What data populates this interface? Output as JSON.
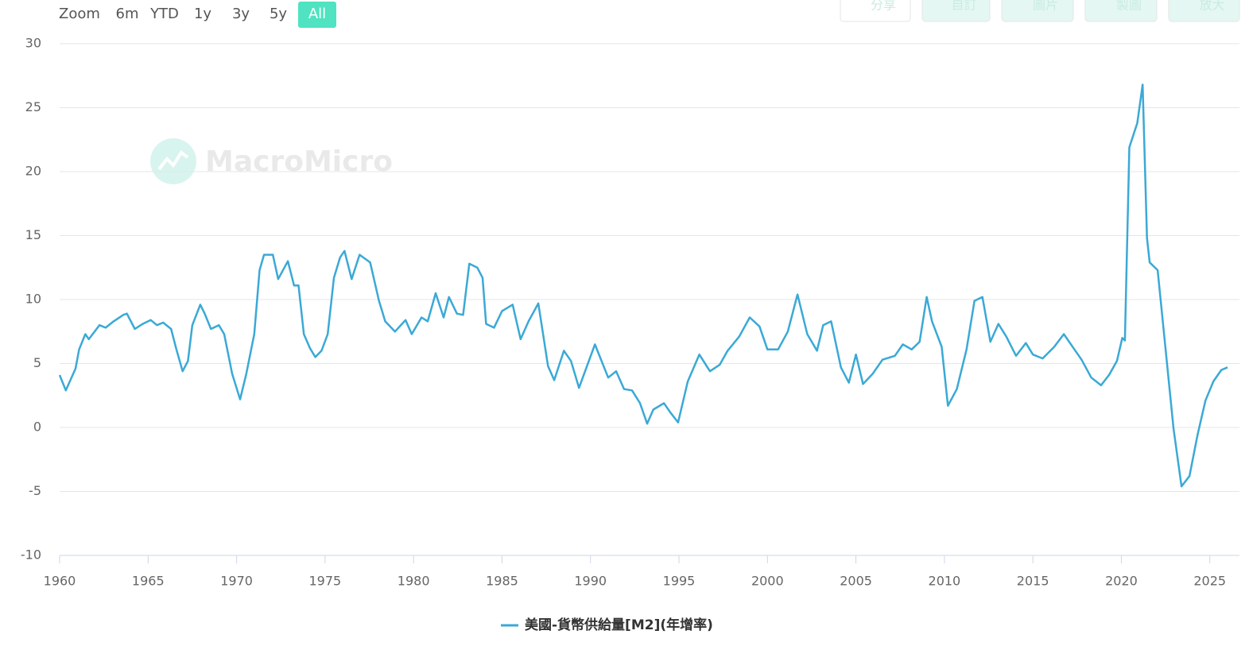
{
  "ui": {
    "zoom_label": "Zoom",
    "zoom_buttons": [
      "6m",
      "YTD",
      "1y",
      "3y",
      "5y",
      "All"
    ],
    "active_zoom": "All",
    "toolbar": [
      "分享",
      "自訂",
      "圖片",
      "製圖",
      "放大"
    ],
    "watermark": "MacroMicro"
  },
  "chart_data": {
    "type": "line",
    "x": [
      1960.0,
      1960.35,
      1960.9,
      1961.1,
      1961.45,
      1961.65,
      1962.25,
      1962.6,
      1963.05,
      1963.6,
      1963.8,
      1964.25,
      1964.7,
      1965.15,
      1965.5,
      1965.85,
      1966.3,
      1966.6,
      1966.95,
      1967.25,
      1967.5,
      1967.95,
      1968.2,
      1968.55,
      1969.0,
      1969.3,
      1969.75,
      1970.2,
      1970.55,
      1971.0,
      1971.3,
      1971.55,
      1972.05,
      1972.35,
      1972.9,
      1973.25,
      1973.5,
      1973.8,
      1974.15,
      1974.45,
      1974.8,
      1975.15,
      1975.5,
      1975.85,
      1976.1,
      1976.5,
      1976.95,
      1977.55,
      1978.05,
      1978.4,
      1978.95,
      1979.55,
      1979.9,
      1980.45,
      1980.8,
      1981.25,
      1981.7,
      1982.0,
      1982.45,
      1982.8,
      1983.15,
      1983.6,
      1983.9,
      1984.1,
      1984.55,
      1985.0,
      1985.6,
      1986.05,
      1986.5,
      1987.05,
      1987.6,
      1987.95,
      1988.5,
      1988.9,
      1989.35,
      1990.25,
      1991.0,
      1991.45,
      1991.9,
      1992.35,
      1992.8,
      1993.2,
      1993.55,
      1994.15,
      1994.5,
      1994.95,
      1995.5,
      1996.15,
      1996.75,
      1997.3,
      1997.75,
      1998.4,
      1999.0,
      1999.55,
      2000.0,
      2000.6,
      2001.15,
      2001.7,
      2002.25,
      2002.8,
      2003.15,
      2003.6,
      2004.15,
      2004.6,
      2005.0,
      2005.4,
      2005.95,
      2006.5,
      2007.2,
      2007.65,
      2008.15,
      2008.6,
      2009.0,
      2009.3,
      2009.85,
      2010.2,
      2010.7,
      2011.25,
      2011.7,
      2012.15,
      2012.6,
      2013.05,
      2013.5,
      2014.05,
      2014.6,
      2015.0,
      2015.55,
      2016.2,
      2016.75,
      2017.25,
      2017.75,
      2018.3,
      2018.85,
      2019.3,
      2019.75,
      2020.05,
      2020.2,
      2020.45,
      2020.9,
      2021.2,
      2021.45,
      2021.6,
      2022.05,
      2022.5,
      2022.95,
      2023.4,
      2023.85,
      2024.3,
      2024.75,
      2025.2,
      2025.65,
      2026.0
    ],
    "series": [
      {
        "name": "美國-貨幣供給量[M2](年增率)",
        "color": "#3aa9d6",
        "values": [
          4.1,
          2.9,
          4.6,
          6.1,
          7.3,
          6.9,
          8.0,
          7.8,
          8.3,
          8.8,
          8.9,
          7.7,
          8.1,
          8.4,
          8.0,
          8.2,
          7.7,
          6.1,
          4.4,
          5.2,
          8.0,
          9.6,
          8.9,
          7.7,
          8.0,
          7.3,
          4.2,
          2.2,
          4.2,
          7.3,
          12.3,
          13.5,
          13.5,
          11.6,
          13.0,
          11.1,
          11.1,
          7.3,
          6.2,
          5.5,
          6.0,
          7.3,
          11.7,
          13.3,
          13.8,
          11.6,
          13.5,
          12.9,
          9.9,
          8.3,
          7.5,
          8.4,
          7.3,
          8.6,
          8.3,
          10.5,
          8.6,
          10.2,
          8.9,
          8.8,
          12.8,
          12.5,
          11.7,
          8.1,
          7.8,
          9.1,
          9.6,
          6.9,
          8.3,
          9.7,
          4.8,
          3.7,
          6.0,
          5.2,
          3.1,
          6.5,
          3.9,
          4.4,
          3.0,
          2.9,
          1.9,
          0.3,
          1.4,
          1.9,
          1.2,
          0.4,
          3.6,
          5.7,
          4.4,
          4.9,
          6.0,
          7.1,
          8.6,
          7.9,
          6.1,
          6.1,
          7.5,
          10.4,
          7.3,
          6.0,
          8.0,
          8.3,
          4.7,
          3.5,
          5.7,
          3.4,
          4.2,
          5.3,
          5.6,
          6.5,
          6.1,
          6.7,
          10.2,
          8.3,
          6.3,
          1.7,
          3.0,
          6.1,
          9.9,
          10.2,
          6.7,
          8.1,
          7.1,
          5.6,
          6.6,
          5.7,
          5.4,
          6.3,
          7.3,
          6.3,
          5.3,
          3.9,
          3.3,
          4.1,
          5.2,
          7.0,
          6.8,
          21.9,
          23.8,
          26.8,
          14.8,
          12.9,
          12.3,
          6.1,
          -0.1,
          -4.6,
          -3.8,
          -0.6,
          2.1,
          3.6,
          4.5,
          4.7
        ]
      }
    ],
    "xlim": [
      1960,
      2026
    ],
    "xticks": [
      1960,
      1965,
      1970,
      1975,
      1980,
      1985,
      1990,
      1995,
      2000,
      2005,
      2010,
      2015,
      2020,
      2025
    ],
    "ylim": [
      -10,
      30
    ],
    "yticks": [
      -10,
      -5,
      0,
      5,
      10,
      15,
      20,
      25,
      30
    ],
    "grid": true,
    "legend": "bottom"
  }
}
